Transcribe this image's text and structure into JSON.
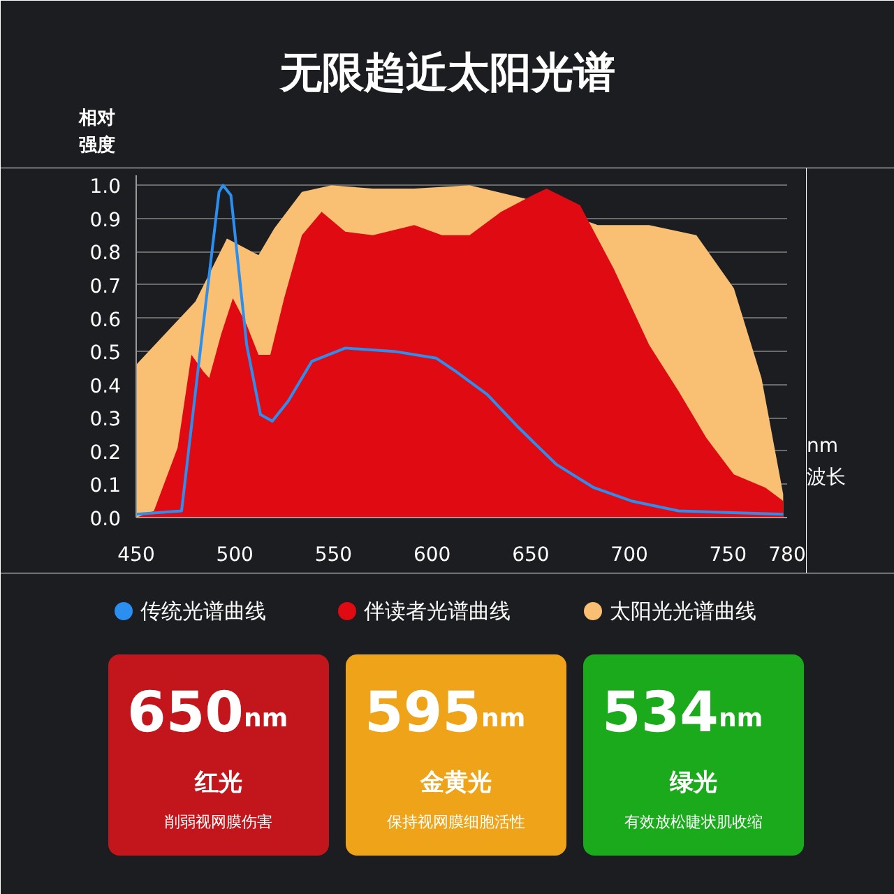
{
  "chart_data": {
    "type": "area",
    "title": "无限趋近太阳光谱",
    "xlabel": "nm\n波长",
    "ylabel": "相对强度",
    "xlim": [
      450,
      780
    ],
    "ylim": [
      0,
      1.03
    ],
    "xticks": [
      450,
      500,
      550,
      600,
      650,
      700,
      750,
      780
    ],
    "yticks": [
      {
        "value": 0,
        "label": "0.0"
      },
      0.1,
      0.2,
      0.3,
      0.4,
      0.5,
      0.6,
      0.7,
      0.8,
      0.9,
      {
        "value": 1,
        "label": "1.0"
      }
    ],
    "grid": "y",
    "legend": "bottom",
    "series": [
      {
        "name": "太阳光光谱曲线",
        "type": "area",
        "color": "#f9bf72",
        "x": [
          450,
          480,
          496,
          512,
          520,
          534,
          549,
          570,
          591,
          619,
          647,
          684,
          710,
          734,
          753,
          767,
          778
        ],
        "values": [
          0.46,
          0.65,
          0.84,
          0.79,
          0.87,
          0.98,
          1.0,
          0.99,
          0.99,
          1.0,
          0.96,
          0.88,
          0.88,
          0.85,
          0.69,
          0.42,
          0.07
        ]
      },
      {
        "name": "伴读者光谱曲线",
        "type": "area",
        "color": "#e00b12",
        "x": [
          450,
          459,
          471,
          478,
          484,
          487,
          493,
          499,
          506,
          512,
          518,
          525,
          534,
          544,
          556,
          570,
          591,
          605,
          619,
          635,
          651,
          658,
          675,
          692,
          710,
          725,
          739,
          753,
          769,
          778
        ],
        "values": [
          0.0,
          0.02,
          0.21,
          0.49,
          0.44,
          0.42,
          0.55,
          0.66,
          0.58,
          0.49,
          0.49,
          0.66,
          0.85,
          0.92,
          0.86,
          0.85,
          0.88,
          0.85,
          0.85,
          0.92,
          0.97,
          0.99,
          0.94,
          0.75,
          0.52,
          0.38,
          0.24,
          0.13,
          0.09,
          0.05
        ]
      },
      {
        "name": "传统光谱曲线",
        "type": "line",
        "color": "#2a8ff0",
        "x": [
          450,
          473,
          485,
          492,
          494,
          498,
          506,
          513,
          519,
          527,
          539,
          556,
          581,
          602,
          612,
          628,
          644,
          663,
          682,
          701,
          725,
          778
        ],
        "values": [
          0.01,
          0.02,
          0.63,
          0.98,
          1.0,
          0.97,
          0.52,
          0.31,
          0.29,
          0.35,
          0.47,
          0.51,
          0.5,
          0.48,
          0.44,
          0.37,
          0.27,
          0.16,
          0.09,
          0.05,
          0.02,
          0.01
        ]
      }
    ],
    "annotations": [
      "650nm",
      "红光",
      "削弱视网膜伤害",
      "595nm",
      "金黄光",
      "保持视网膜细胞活性",
      "534nm",
      "绿光",
      "有效放松睫状肌收缩"
    ]
  }
}
